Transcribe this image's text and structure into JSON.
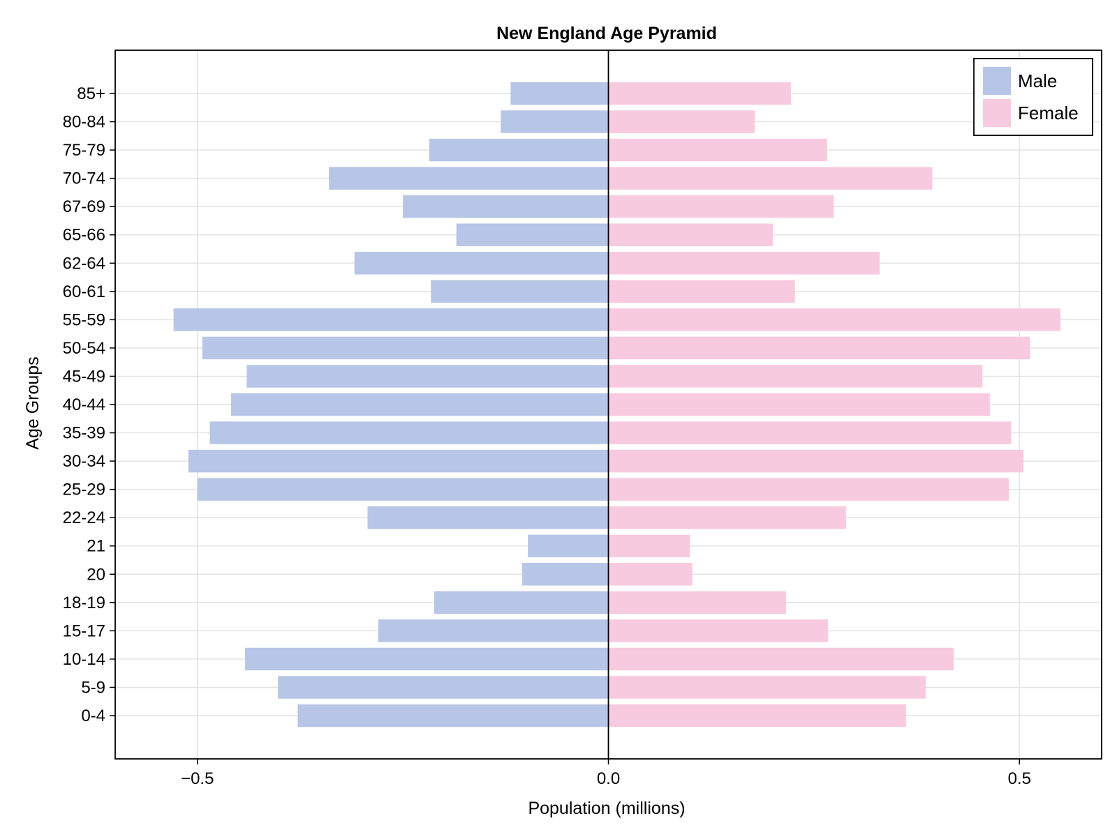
{
  "chart_data": {
    "type": "bar",
    "orientation": "horizontal",
    "title": "New England Age Pyramid",
    "xlabel": "Population (millions)",
    "ylabel": "Age Groups",
    "xlim": [
      -0.6,
      0.6
    ],
    "xticks": [
      -0.5,
      0.0,
      0.5
    ],
    "xtick_labels": [
      "−0.5",
      "0.0",
      "0.5"
    ],
    "grid": true,
    "legend_position": "top-right",
    "categories": [
      "0-4",
      "5-9",
      "10-14",
      "15-17",
      "18-19",
      "20",
      "21",
      "22-24",
      "25-29",
      "30-34",
      "35-39",
      "40-44",
      "45-49",
      "50-54",
      "55-59",
      "60-61",
      "62-64",
      "65-66",
      "67-69",
      "70-74",
      "75-79",
      "80-84",
      "85+"
    ],
    "series": [
      {
        "name": "Male",
        "color": "#b7c6e6",
        "values": [
          -0.378,
          -0.402,
          -0.442,
          -0.28,
          -0.212,
          -0.105,
          -0.098,
          -0.293,
          -0.5,
          -0.511,
          -0.485,
          -0.459,
          -0.44,
          -0.494,
          -0.529,
          -0.216,
          -0.309,
          -0.185,
          -0.25,
          -0.34,
          -0.218,
          -0.131,
          -0.119
        ]
      },
      {
        "name": "Female",
        "color": "#f8cadf",
        "values": [
          0.362,
          0.386,
          0.42,
          0.267,
          0.216,
          0.102,
          0.099,
          0.289,
          0.487,
          0.505,
          0.49,
          0.464,
          0.455,
          0.513,
          0.55,
          0.227,
          0.33,
          0.2,
          0.274,
          0.394,
          0.266,
          0.178,
          0.222
        ]
      }
    ]
  }
}
